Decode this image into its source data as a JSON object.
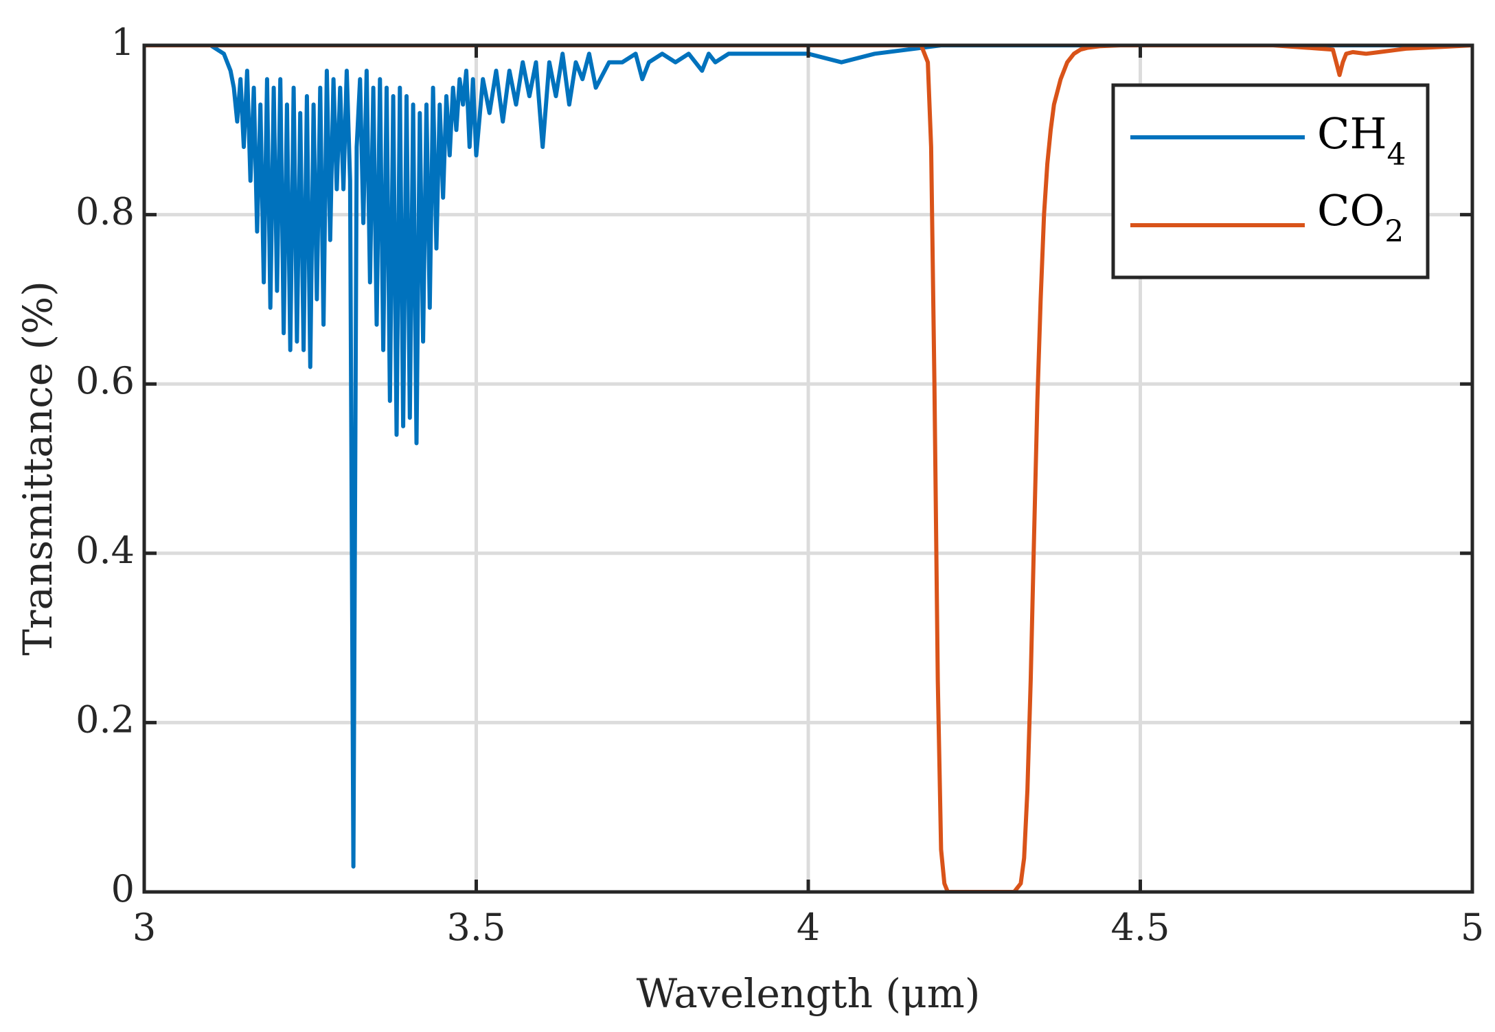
{
  "chart_data": {
    "type": "line",
    "xlabel": "Wavelength (μm)",
    "ylabel": "Transmittance (%)",
    "xlim": [
      3,
      5
    ],
    "ylim": [
      0,
      1
    ],
    "xticks": [
      3,
      3.5,
      4,
      4.5,
      5
    ],
    "xtick_labels": [
      "3",
      "3.5",
      "4",
      "4.5",
      "5"
    ],
    "yticks": [
      0,
      0.2,
      0.4,
      0.6,
      0.8,
      1
    ],
    "ytick_labels": [
      "0",
      "0.2",
      "0.4",
      "0.6",
      "0.8",
      "1"
    ],
    "grid": true,
    "legend_position": "top-right",
    "series": [
      {
        "name": "CH4",
        "label_main": "CH",
        "label_sub": "4",
        "color": "#0072BD",
        "x": [
          3.0,
          3.1,
          3.12,
          3.13,
          3.135,
          3.14,
          3.145,
          3.15,
          3.155,
          3.16,
          3.165,
          3.17,
          3.175,
          3.18,
          3.185,
          3.19,
          3.195,
          3.2,
          3.205,
          3.21,
          3.215,
          3.22,
          3.225,
          3.23,
          3.235,
          3.24,
          3.245,
          3.25,
          3.255,
          3.26,
          3.265,
          3.27,
          3.275,
          3.28,
          3.285,
          3.29,
          3.295,
          3.3,
          3.305,
          3.31,
          3.315,
          3.32,
          3.325,
          3.33,
          3.335,
          3.34,
          3.345,
          3.35,
          3.355,
          3.36,
          3.365,
          3.37,
          3.375,
          3.38,
          3.385,
          3.39,
          3.395,
          3.4,
          3.405,
          3.41,
          3.415,
          3.42,
          3.425,
          3.43,
          3.435,
          3.44,
          3.445,
          3.45,
          3.455,
          3.46,
          3.465,
          3.47,
          3.475,
          3.48,
          3.485,
          3.49,
          3.495,
          3.5,
          3.51,
          3.52,
          3.53,
          3.54,
          3.55,
          3.56,
          3.57,
          3.58,
          3.59,
          3.6,
          3.61,
          3.62,
          3.63,
          3.64,
          3.65,
          3.66,
          3.67,
          3.68,
          3.7,
          3.72,
          3.74,
          3.75,
          3.76,
          3.78,
          3.8,
          3.82,
          3.84,
          3.85,
          3.86,
          3.88,
          3.9,
          3.95,
          4.0,
          4.05,
          4.1,
          4.2,
          4.3,
          4.4,
          4.5,
          4.6,
          4.7,
          4.8,
          4.9,
          5.0
        ],
        "y": [
          1.0,
          1.0,
          0.99,
          0.97,
          0.95,
          0.91,
          0.96,
          0.88,
          0.97,
          0.84,
          0.95,
          0.78,
          0.93,
          0.72,
          0.96,
          0.69,
          0.95,
          0.71,
          0.96,
          0.66,
          0.93,
          0.64,
          0.95,
          0.65,
          0.92,
          0.64,
          0.94,
          0.62,
          0.93,
          0.7,
          0.95,
          0.67,
          0.97,
          0.77,
          0.96,
          0.83,
          0.95,
          0.83,
          0.97,
          0.84,
          0.03,
          0.88,
          0.96,
          0.79,
          0.97,
          0.72,
          0.95,
          0.67,
          0.96,
          0.64,
          0.95,
          0.58,
          0.94,
          0.54,
          0.95,
          0.55,
          0.94,
          0.56,
          0.93,
          0.53,
          0.92,
          0.65,
          0.93,
          0.69,
          0.95,
          0.76,
          0.93,
          0.82,
          0.94,
          0.87,
          0.95,
          0.9,
          0.96,
          0.93,
          0.97,
          0.88,
          0.96,
          0.87,
          0.96,
          0.92,
          0.97,
          0.91,
          0.97,
          0.93,
          0.98,
          0.94,
          0.98,
          0.88,
          0.98,
          0.94,
          0.99,
          0.93,
          0.98,
          0.96,
          0.99,
          0.95,
          0.98,
          0.98,
          0.99,
          0.96,
          0.98,
          0.99,
          0.98,
          0.99,
          0.97,
          0.99,
          0.98,
          0.99,
          0.99,
          0.99,
          0.99,
          0.98,
          0.99,
          1.0,
          1.0,
          1.0,
          1.0,
          1.0,
          1.0,
          1.0,
          1.0,
          1.0
        ]
      },
      {
        "name": "CO2",
        "label_main": "CO",
        "label_sub": "2",
        "color": "#D95319",
        "x": [
          3.0,
          4.17,
          4.18,
          4.185,
          4.19,
          4.195,
          4.2,
          4.205,
          4.21,
          4.3,
          4.31,
          4.32,
          4.325,
          4.33,
          4.335,
          4.34,
          4.345,
          4.35,
          4.355,
          4.36,
          4.365,
          4.37,
          4.38,
          4.39,
          4.4,
          4.41,
          4.42,
          4.44,
          4.47,
          4.7,
          4.79,
          4.795,
          4.8,
          4.805,
          4.81,
          4.82,
          4.84,
          4.86,
          4.9,
          4.95,
          5.0
        ],
        "y": [
          1.0,
          1.0,
          0.98,
          0.88,
          0.6,
          0.25,
          0.05,
          0.01,
          0.0,
          0.0,
          0.0,
          0.01,
          0.04,
          0.12,
          0.25,
          0.42,
          0.58,
          0.7,
          0.8,
          0.86,
          0.9,
          0.93,
          0.96,
          0.98,
          0.99,
          0.995,
          0.997,
          0.999,
          1.0,
          1.0,
          0.995,
          0.98,
          0.965,
          0.98,
          0.99,
          0.992,
          0.99,
          0.992,
          0.996,
          0.998,
          1.0
        ]
      }
    ]
  }
}
